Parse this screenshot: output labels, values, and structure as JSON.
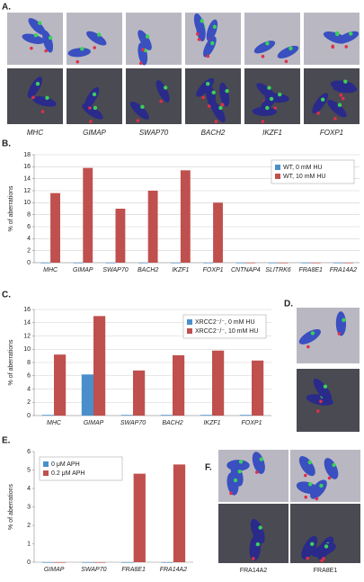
{
  "panel_a": {
    "label": "A.",
    "captions": [
      "MHC",
      "GIMAP",
      "SWAP70",
      "BACH2",
      "IKZF1",
      "FOXP1"
    ]
  },
  "panel_d": {
    "label": "D."
  },
  "panel_f": {
    "label": "F.",
    "captions": [
      "FRA14A2",
      "FRA8E1"
    ]
  },
  "chart_data": [
    {
      "type": "bar",
      "panel_label": "B.",
      "y_label": "% of aberrations",
      "categories": [
        "MHC",
        "GIMAP",
        "SWAP70",
        "BACH2",
        "IKZF1",
        "FOXP1",
        "CNTNAP4",
        "SLITRK6",
        "FRA8E1",
        "FRA14A2"
      ],
      "series": [
        {
          "name": "WT, 0 mM HU",
          "color": "#4a8fcc",
          "values": [
            0,
            0,
            0,
            0,
            0,
            0,
            0,
            0,
            0,
            0
          ]
        },
        {
          "name": "WT, 10 mM HU",
          "color": "#c0504d",
          "values": [
            11.6,
            15.8,
            9.0,
            12.0,
            15.4,
            10.0,
            0,
            0,
            0,
            0
          ]
        }
      ],
      "ylim": [
        0,
        18
      ],
      "yticks": [
        0,
        2,
        4,
        6,
        8,
        10,
        12,
        14,
        16,
        18
      ],
      "grid": true,
      "legend": "top-right"
    },
    {
      "type": "bar",
      "panel_label": "C.",
      "y_label": "% of aberrations",
      "categories": [
        "MHC",
        "GIMAP",
        "SWAP70",
        "BACH2",
        "IKZF1",
        "FOXP1"
      ],
      "series": [
        {
          "name": "XRCC2⁻/⁻, 0 mM HU",
          "color": "#4a8fcc",
          "values": [
            0.1,
            6.2,
            0.1,
            0.1,
            0.1,
            0.1
          ]
        },
        {
          "name": "XRCC2⁻/⁻, 10 mM HU",
          "color": "#c0504d",
          "values": [
            9.2,
            15.0,
            6.8,
            9.1,
            9.8,
            8.3
          ]
        }
      ],
      "ylim": [
        0,
        16
      ],
      "yticks": [
        0,
        2,
        4,
        6,
        8,
        10,
        12,
        14,
        16
      ],
      "grid": true,
      "legend": "top-right"
    },
    {
      "type": "bar",
      "panel_label": "E.",
      "y_label": "% of aberrations",
      "categories": [
        "GIMAP",
        "SWAP70",
        "FRA8E1",
        "FRA14A2"
      ],
      "series": [
        {
          "name": "0 μM APH",
          "color": "#4a8fcc",
          "values": [
            0,
            0,
            0,
            0
          ]
        },
        {
          "name": "0.2 μM APH",
          "color": "#c0504d",
          "values": [
            0,
            0,
            4.8,
            5.3
          ]
        }
      ],
      "ylim": [
        0,
        6
      ],
      "yticks": [
        0,
        1,
        2,
        3,
        4,
        5,
        6
      ],
      "grid": false,
      "legend": "top-left"
    }
  ]
}
